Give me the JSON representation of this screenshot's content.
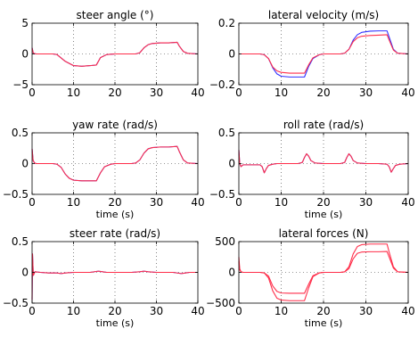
{
  "colors": {
    "blue": "#3030ff",
    "red": "#ff2e4a"
  },
  "chart_data": [
    {
      "type": "line",
      "title": "steer angle (°)",
      "xlabel": "",
      "xlim": [
        0,
        40
      ],
      "ylim": [
        -5,
        5
      ],
      "xticks": [
        0,
        10,
        20,
        30,
        40
      ],
      "yticks": [
        -5,
        0,
        5
      ],
      "xtick_labels": [
        "0",
        "10",
        "20",
        "30",
        "40"
      ],
      "ytick_labels": [
        "−5",
        "0",
        "5"
      ],
      "grid": true,
      "series": [
        {
          "color": "blue",
          "x": [
            0,
            0.3,
            1,
            3,
            5,
            6,
            8,
            10,
            12,
            14,
            15.5,
            16.5,
            18,
            20,
            24,
            25,
            26,
            27,
            28,
            29,
            31,
            33,
            35,
            35.5,
            36.5,
            37.5,
            40
          ],
          "y": [
            1.0,
            0.1,
            0,
            0,
            0,
            -0.1,
            -1.2,
            -1.9,
            -2.0,
            -1.9,
            -1.8,
            -0.6,
            -0.1,
            0,
            0,
            0,
            0.2,
            1.0,
            1.5,
            1.7,
            1.8,
            1.8,
            1.9,
            1.3,
            0.4,
            0.1,
            0
          ]
        },
        {
          "color": "red",
          "x": [
            0,
            0.3,
            1,
            3,
            5,
            6,
            8,
            10,
            12,
            14,
            15.5,
            16.5,
            18,
            20,
            24,
            25,
            26,
            27,
            28,
            29,
            31,
            33,
            35,
            35.5,
            36.5,
            37.5,
            40
          ],
          "y": [
            1.0,
            0.1,
            0,
            0,
            0,
            -0.1,
            -1.2,
            -1.9,
            -2.0,
            -1.9,
            -1.8,
            -0.6,
            -0.1,
            0,
            0,
            0,
            0.2,
            1.0,
            1.5,
            1.7,
            1.8,
            1.8,
            1.9,
            1.3,
            0.4,
            0.1,
            0
          ]
        }
      ]
    },
    {
      "type": "line",
      "title": "lateral velocity (m/s)",
      "xlabel": "",
      "xlim": [
        0,
        40
      ],
      "ylim": [
        -0.2,
        0.2
      ],
      "xticks": [
        0,
        10,
        20,
        30,
        40
      ],
      "yticks": [
        -0.2,
        0,
        0.2
      ],
      "xtick_labels": [
        "0",
        "10",
        "20",
        "30",
        "40"
      ],
      "ytick_labels": [
        "−0.2",
        "0",
        "0.2"
      ],
      "grid": true,
      "series": [
        {
          "color": "blue",
          "x": [
            0,
            1,
            3,
            5,
            6,
            7,
            8,
            9,
            10,
            12,
            14,
            15.5,
            16.5,
            17.5,
            19,
            20,
            24,
            25,
            26,
            27,
            28,
            29,
            31,
            33,
            35,
            35.5,
            36.5,
            37.5,
            40
          ],
          "y": [
            0,
            0,
            0,
            0,
            -0.005,
            -0.03,
            -0.09,
            -0.13,
            -0.145,
            -0.15,
            -0.15,
            -0.15,
            -0.08,
            -0.03,
            -0.005,
            0,
            0,
            0.005,
            0.03,
            0.09,
            0.125,
            0.14,
            0.148,
            0.15,
            0.15,
            0.11,
            0.03,
            0.005,
            0
          ]
        },
        {
          "color": "red",
          "x": [
            0,
            1,
            3,
            5,
            6,
            7,
            8,
            9,
            10,
            12,
            14,
            15.5,
            16.5,
            17.5,
            19,
            20,
            24,
            25,
            26,
            27,
            28,
            29,
            31,
            33,
            35,
            35.5,
            36.5,
            37.5,
            40
          ],
          "y": [
            0,
            0,
            0,
            0,
            -0.005,
            -0.03,
            -0.085,
            -0.11,
            -0.12,
            -0.125,
            -0.125,
            -0.125,
            -0.07,
            -0.025,
            -0.005,
            0,
            0,
            0.005,
            0.03,
            0.08,
            0.105,
            0.115,
            0.12,
            0.122,
            0.125,
            0.09,
            0.025,
            0.005,
            0
          ]
        }
      ]
    },
    {
      "type": "line",
      "title": "yaw rate (rad/s)",
      "xlabel": "time (s)",
      "xlim": [
        0,
        40
      ],
      "ylim": [
        -0.5,
        0.5
      ],
      "xticks": [
        0,
        10,
        20,
        30,
        40
      ],
      "yticks": [
        -0.5,
        0,
        0.5
      ],
      "xtick_labels": [
        "0",
        "10",
        "20",
        "30",
        "40"
      ],
      "ytick_labels": [
        "−0.5",
        "0",
        "0.5"
      ],
      "grid": true,
      "series": [
        {
          "color": "blue",
          "x": [
            0,
            0.25,
            0.6,
            1,
            3,
            5,
            6,
            7,
            8,
            9,
            10,
            12,
            14,
            15.5,
            16.5,
            17.5,
            19,
            20,
            24,
            25,
            26,
            27,
            28,
            29,
            31,
            33,
            35,
            35.5,
            36.5,
            37.5,
            40
          ],
          "y": [
            0.24,
            0.05,
            0.01,
            0,
            0,
            0,
            -0.01,
            -0.06,
            -0.17,
            -0.24,
            -0.27,
            -0.28,
            -0.28,
            -0.28,
            -0.15,
            -0.05,
            -0.01,
            0,
            0,
            0.01,
            0.06,
            0.17,
            0.24,
            0.26,
            0.27,
            0.27,
            0.28,
            0.2,
            0.06,
            0.01,
            0
          ]
        },
        {
          "color": "red",
          "x": [
            0,
            0.25,
            0.6,
            1,
            3,
            5,
            6,
            7,
            8,
            9,
            10,
            12,
            14,
            15.5,
            16.5,
            17.5,
            19,
            20,
            24,
            25,
            26,
            27,
            28,
            29,
            31,
            33,
            35,
            35.5,
            36.5,
            37.5,
            40
          ],
          "y": [
            0.24,
            0.05,
            0.01,
            0,
            0,
            0,
            -0.01,
            -0.06,
            -0.17,
            -0.24,
            -0.27,
            -0.28,
            -0.28,
            -0.28,
            -0.15,
            -0.05,
            -0.01,
            0,
            0,
            0.01,
            0.06,
            0.17,
            0.24,
            0.26,
            0.27,
            0.27,
            0.28,
            0.2,
            0.06,
            0.01,
            0
          ]
        }
      ]
    },
    {
      "type": "line",
      "title": "roll rate (rad/s)",
      "xlabel": "time (s)",
      "xlim": [
        0,
        40
      ],
      "ylim": [
        -0.5,
        0.5
      ],
      "xticks": [
        0,
        10,
        20,
        30,
        40
      ],
      "yticks": [
        -0.5,
        0,
        0.5
      ],
      "xtick_labels": [
        "0",
        "10",
        "20",
        "30",
        "40"
      ],
      "ytick_labels": [
        "−0.5",
        "0",
        "0.5"
      ],
      "grid": true,
      "series": [
        {
          "color": "blue",
          "x": [
            0,
            0.2,
            0.5,
            1,
            3,
            5,
            5.5,
            6,
            6.5,
            7,
            8,
            9,
            10,
            12,
            14,
            15,
            15.5,
            16,
            16.5,
            17,
            18,
            20,
            24,
            25,
            25.5,
            26,
            26.5,
            27,
            28,
            30,
            33,
            35,
            35.5,
            36,
            36.5,
            37,
            38,
            40
          ],
          "y": [
            0.22,
            0,
            -0.05,
            -0.02,
            -0.02,
            -0.02,
            -0.05,
            -0.15,
            -0.08,
            -0.03,
            -0.01,
            0,
            0,
            0,
            0,
            0.02,
            0.1,
            0.16,
            0.12,
            0.05,
            0.01,
            0,
            0,
            0.02,
            0.1,
            0.16,
            0.12,
            0.05,
            0.01,
            0,
            0,
            -0.01,
            -0.05,
            -0.14,
            -0.08,
            -0.03,
            -0.01,
            0
          ]
        },
        {
          "color": "red",
          "x": [
            0,
            0.2,
            0.5,
            1,
            3,
            5,
            5.5,
            6,
            6.5,
            7,
            8,
            9,
            10,
            12,
            14,
            15,
            15.5,
            16,
            16.5,
            17,
            18,
            20,
            24,
            25,
            25.5,
            26,
            26.5,
            27,
            28,
            30,
            33,
            35,
            35.5,
            36,
            36.5,
            37,
            38,
            40
          ],
          "y": [
            0.22,
            0,
            -0.05,
            -0.02,
            -0.02,
            -0.02,
            -0.05,
            -0.15,
            -0.08,
            -0.03,
            -0.01,
            0,
            0,
            0,
            0,
            0.02,
            0.1,
            0.16,
            0.12,
            0.05,
            0.01,
            0,
            0,
            0.02,
            0.1,
            0.16,
            0.12,
            0.05,
            0.01,
            0,
            0,
            -0.01,
            -0.05,
            -0.14,
            -0.08,
            -0.03,
            -0.01,
            0
          ]
        }
      ]
    },
    {
      "type": "line",
      "title": "steer rate (rad/s)",
      "xlabel": "time (s)",
      "xlim": [
        0,
        40
      ],
      "ylim": [
        -0.5,
        0.5
      ],
      "xticks": [
        0,
        10,
        20,
        30,
        40
      ],
      "yticks": [
        -0.5,
        0,
        0.5
      ],
      "xtick_labels": [
        "0",
        "10",
        "20",
        "30",
        "40"
      ],
      "ytick_labels": [
        "−0.5",
        "0",
        "0.5"
      ],
      "grid": true,
      "series": [
        {
          "color": "blue",
          "x": [
            0,
            0.1,
            0.3,
            0.7,
            2,
            4,
            6,
            7,
            8,
            10,
            12,
            14,
            16,
            17,
            18,
            20,
            22,
            24,
            26,
            27,
            28,
            30,
            32,
            34,
            36,
            37,
            38,
            40
          ],
          "y": [
            -0.45,
            0.3,
            -0.05,
            0.01,
            0,
            -0.01,
            -0.01,
            -0.02,
            -0.01,
            0,
            0,
            0,
            0.02,
            0.01,
            0,
            0,
            0,
            0,
            0.01,
            0.02,
            0.01,
            0,
            0,
            0,
            -0.02,
            -0.01,
            0,
            0
          ]
        },
        {
          "color": "red",
          "x": [
            0,
            0.1,
            0.3,
            0.7,
            2,
            4,
            6,
            7,
            8,
            10,
            12,
            14,
            16,
            17,
            18,
            20,
            22,
            24,
            26,
            27,
            28,
            30,
            32,
            34,
            36,
            37,
            38,
            40
          ],
          "y": [
            -0.45,
            0.3,
            -0.05,
            0.01,
            0,
            -0.01,
            -0.01,
            -0.02,
            -0.01,
            0,
            0,
            0,
            0.02,
            0.01,
            0,
            0,
            0,
            0,
            0.01,
            0.02,
            0.01,
            0,
            0,
            0,
            -0.02,
            -0.01,
            0,
            0
          ]
        }
      ]
    },
    {
      "type": "line",
      "title": "lateral forces (N)",
      "xlabel": "time (s)",
      "xlim": [
        0,
        40
      ],
      "ylim": [
        -500,
        500
      ],
      "xticks": [
        0,
        10,
        20,
        30,
        40
      ],
      "yticks": [
        -500,
        0,
        500
      ],
      "xtick_labels": [
        "0",
        "10",
        "20",
        "30",
        "40"
      ],
      "ytick_labels": [
        "−500",
        "0",
        "500"
      ],
      "grid": true,
      "series": [
        {
          "color": "red",
          "x": [
            0,
            0.2,
            0.5,
            1,
            3,
            5,
            6,
            7,
            8,
            9,
            10,
            12,
            14,
            15.5,
            16.5,
            17.5,
            19,
            20,
            24,
            25,
            26,
            27,
            28,
            29,
            31,
            33,
            35,
            35.5,
            36.5,
            37.5,
            40
          ],
          "y": [
            250,
            60,
            10,
            0,
            0,
            0,
            -10,
            -90,
            -300,
            -420,
            -450,
            -460,
            -460,
            -460,
            -250,
            -70,
            -10,
            0,
            0,
            10,
            90,
            300,
            420,
            450,
            460,
            460,
            460,
            330,
            90,
            10,
            0
          ]
        },
        {
          "color": "red",
          "x": [
            0,
            0.2,
            0.5,
            1,
            3,
            5,
            6,
            7,
            8,
            9,
            10,
            12,
            14,
            15.5,
            16.5,
            17.5,
            19,
            20,
            24,
            25,
            26,
            27,
            28,
            29,
            31,
            33,
            35,
            35.5,
            36.5,
            37.5,
            40
          ],
          "y": [
            180,
            40,
            8,
            0,
            0,
            0,
            -8,
            -60,
            -220,
            -310,
            -335,
            -340,
            -340,
            -340,
            -190,
            -55,
            -8,
            0,
            0,
            8,
            60,
            220,
            310,
            330,
            335,
            335,
            340,
            250,
            70,
            8,
            0
          ]
        }
      ]
    }
  ]
}
